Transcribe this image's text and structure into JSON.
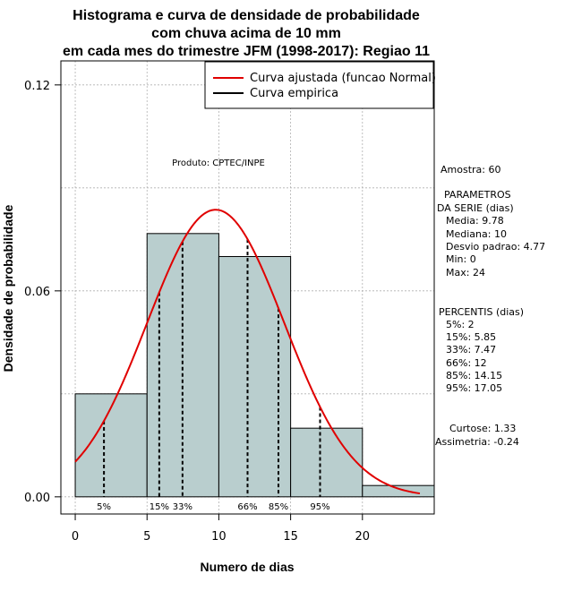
{
  "chart_data": {
    "type": "bar",
    "title_lines": [
      "Histograma e curva de densidade de probabilidade",
      "com chuva acima de 10 mm",
      "em cada mes do trimestre JFM (1998-2017): Regiao 11"
    ],
    "xlabel": "Numero de dias",
    "ylabel": "Densidade de probabilidade",
    "xlim": [
      -1,
      25
    ],
    "ylim": [
      -0.005,
      0.127
    ],
    "x_ticks": [
      0,
      5,
      10,
      15,
      20
    ],
    "y_ticks": [
      0.0,
      0.06,
      0.12
    ],
    "y_tick_labels": [
      "0.00",
      "0.06",
      "0.12"
    ],
    "grid": true,
    "bins": [
      {
        "start": 0,
        "end": 5,
        "density": 0.03
      },
      {
        "start": 5,
        "end": 10,
        "density": 0.0767
      },
      {
        "start": 10,
        "end": 15,
        "density": 0.07
      },
      {
        "start": 15,
        "end": 20,
        "density": 0.02
      },
      {
        "start": 20,
        "end": 25,
        "density": 0.0033
      }
    ],
    "bar_color": "#b9cece",
    "normal_fit": {
      "mean": 9.78,
      "sd": 4.77,
      "x_range": [
        0,
        24
      ],
      "color": "#e00000"
    },
    "legend": [
      {
        "label": "Curva ajustada (funcao Normal)",
        "color": "#e00000"
      },
      {
        "label": "Curva empirica",
        "color": "#000000"
      }
    ],
    "percentile_markers": [
      {
        "label": "5%",
        "x": 2
      },
      {
        "label": "15%",
        "x": 5.85
      },
      {
        "label": "33%",
        "x": 7.47
      },
      {
        "label": "66%",
        "x": 12
      },
      {
        "label": "85%",
        "x": 14.15
      },
      {
        "label": "95%",
        "x": 17.05
      }
    ],
    "annotation": "Produto: CPTEC/INPE"
  },
  "side_panel": {
    "amostra": "Amostra: 60",
    "parametros_title_1": "PARAMETROS",
    "parametros_title_2": "DA SERIE (dias)",
    "media": "Media: 9.78",
    "mediana": "Mediana: 10",
    "desvio": "Desvio padrao: 4.77",
    "min": "Min: 0",
    "max": "Max: 24",
    "percentis_title": "PERCENTIS (dias)",
    "p5": "5%: 2",
    "p15": "15%: 5.85",
    "p33": "33%: 7.47",
    "p66": "66%: 12",
    "p85": "85%: 14.15",
    "p95": "95%: 17.05",
    "curtose": "Curtose: 1.33",
    "assimetria": "Assimetria: -0.24"
  }
}
